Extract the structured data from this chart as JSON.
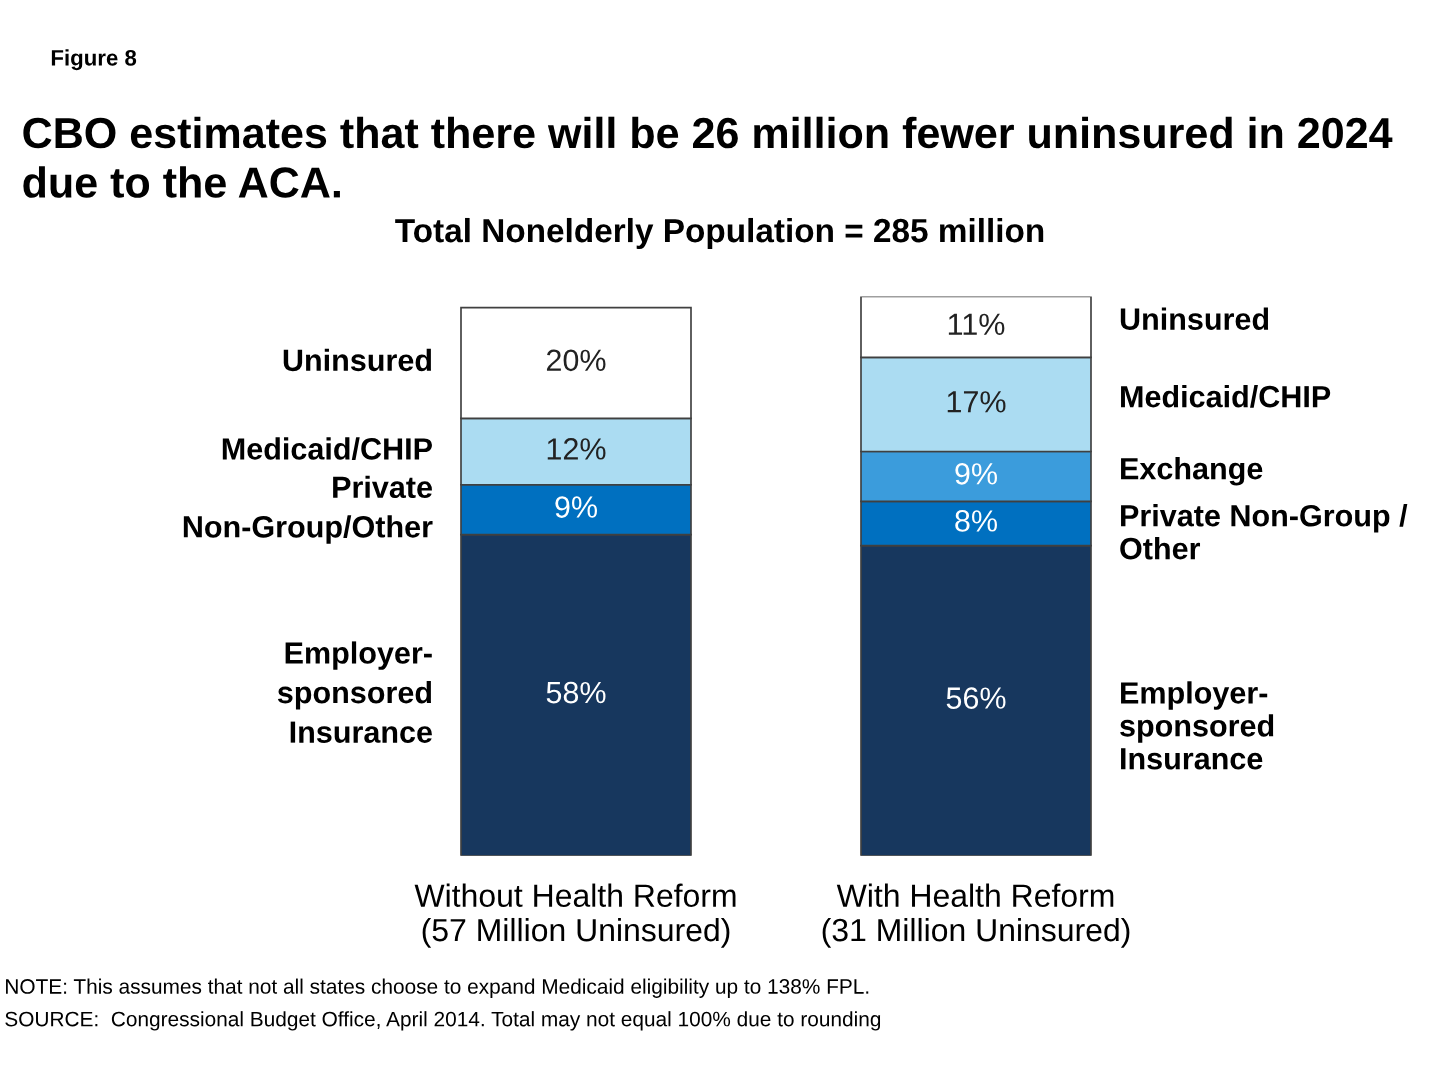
{
  "chart_data": {
    "type": "bar",
    "stacked": true,
    "legend": false,
    "grid": false,
    "title": "CBO estimates that there will be 26 million fewer uninsured in 2024 due to the ACA.",
    "subtitle": "Total Nonelderly Population = 285 million",
    "categories": [
      "Without Health Reform\n(57 Million Uninsured)",
      "With Health Reform\n(31 Million Uninsured)"
    ],
    "series": [
      {
        "name": "Employer-\nsponsored\nInsurance",
        "color": "#17375e",
        "values": [
          58,
          56
        ],
        "value_labels": [
          "58%",
          "56%"
        ]
      },
      {
        "name": "Private Non-Group /\nOther",
        "color": "#0070c0",
        "values": [
          9,
          8
        ],
        "value_labels": [
          "9%",
          "8%"
        ]
      },
      {
        "name": "Exchange",
        "color": "#3b9cdc",
        "values": [
          null,
          9
        ],
        "value_labels": [
          null,
          "9%"
        ]
      },
      {
        "name": "Medicaid/CHIP",
        "color": "#abdcf2",
        "values": [
          12,
          17
        ],
        "value_labels": [
          "12%",
          "17%"
        ]
      },
      {
        "name": "Uninsured",
        "color": "#ffffff",
        "values": [
          20,
          11
        ],
        "value_labels": [
          "20%",
          "11%"
        ]
      }
    ],
    "annotations": [
      "Figure 8",
      "Employer-\nsponsored\nInsurance",
      "Private\nNon-Group/Other",
      "Medicaid/CHIP",
      "Uninsured",
      "NOTE: This assumes that not all states choose to expand Medicaid eligibility up to 138% FPL.",
      "SOURCE:  Congressional Budget Office, April 2014. Total may not equal 100% due to rounding"
    ]
  }
}
